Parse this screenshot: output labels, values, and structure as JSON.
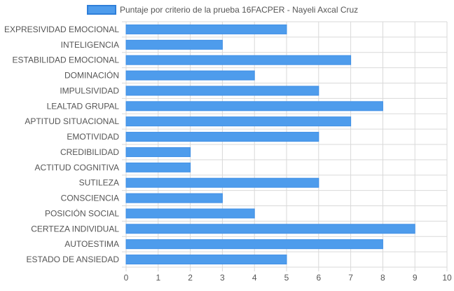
{
  "chart_data": {
    "type": "bar",
    "orientation": "horizontal",
    "categories": [
      "EXPRESIVIDAD EMOCIONAL",
      "INTELIGENCIA",
      "ESTABILIDAD EMOCIONAL",
      "DOMINACIÓN",
      "IMPULSIVIDAD",
      "LEALTAD GRUPAL",
      "APTITUD SITUACIONAL",
      "EMOTIVIDAD",
      "CREDIBILIDAD",
      "ACTITUD COGNITIVA",
      "SUTILEZA",
      "CONSCIENCIA",
      "POSICIÓN SOCIAL",
      "CERTEZA INDIVIDUAL",
      "AUTOESTIMA",
      "ESTADO DE ANSIEDAD"
    ],
    "series": [
      {
        "name": "Puntaje por criterio de la prueba 16FACPER - Nayeli Axcal Cruz",
        "values": [
          5,
          3,
          7,
          4,
          6,
          8,
          7,
          6,
          2,
          2,
          6,
          3,
          4,
          9,
          8,
          5
        ]
      }
    ],
    "xlim": [
      0,
      10
    ],
    "xticks": [
      "0",
      "1",
      "2",
      "3",
      "4",
      "5",
      "6",
      "7",
      "8",
      "9",
      "10"
    ],
    "grid": true,
    "legend_position": "top",
    "colors": {
      "bar_fill": "#4e9cec",
      "bar_stroke": "#3f8fe6",
      "grid": "#d9d9d9",
      "text": "#555555"
    }
  }
}
